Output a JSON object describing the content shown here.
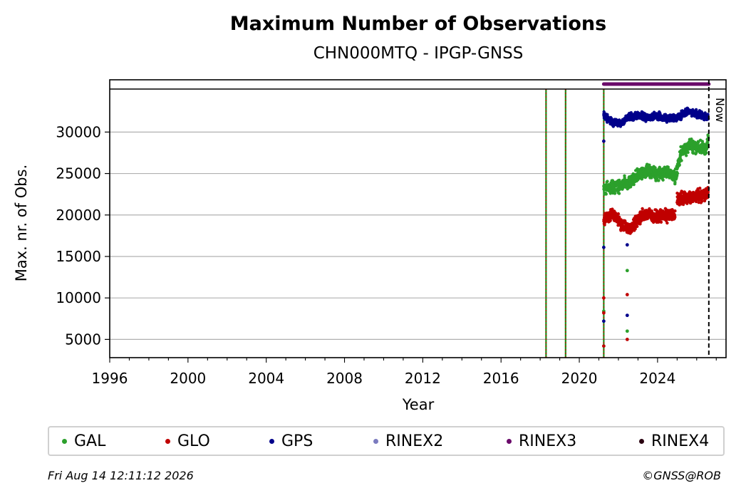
{
  "chart_data": {
    "type": "scatter",
    "title": "Maximum Number of Observations",
    "subtitle": "CHN000MTQ - IPGP-GNSS",
    "xlabel": "Year",
    "ylabel": "Max. nr. of Obs.",
    "xlim": [
      1996,
      2027.5
    ],
    "ylim": [
      2800,
      36300
    ],
    "x_ticks": [
      1996,
      2000,
      2004,
      2008,
      2012,
      2016,
      2020,
      2024
    ],
    "y_ticks": [
      5000,
      10000,
      15000,
      20000,
      25000,
      30000
    ],
    "grid": "horizontal",
    "now_label": "Now",
    "now_x": 2026.62,
    "event_lines_x": [
      2018.3,
      2019.3,
      2021.25
    ],
    "series": [
      {
        "name": "GAL",
        "color": "#2ca02c",
        "segments": [
          {
            "x": [
              2021.25,
              2022.0,
              2022.5,
              2023.0,
              2023.5,
              2024.0,
              2024.5,
              2024.9,
              2025.2,
              2025.6,
              2026.0,
              2026.5,
              2026.6
            ],
            "y": [
              23200,
              23500,
              23800,
              24800,
              25300,
              25000,
              25200,
              24500,
              27500,
              28300,
              28200,
              28000,
              29500
            ]
          }
        ],
        "outliers": [
          {
            "x": 2021.25,
            "y": 8400
          },
          {
            "x": 2022.45,
            "y": 6000
          },
          {
            "x": 2022.45,
            "y": 13300
          }
        ]
      },
      {
        "name": "GLO",
        "color": "#c00000",
        "segments": [
          {
            "x": [
              2021.25,
              2021.7,
              2022.2,
              2022.6,
              2023.0,
              2023.5,
              2024.0,
              2024.5,
              2024.9
            ],
            "y": [
              19500,
              20000,
              18800,
              18200,
              19600,
              20100,
              19800,
              19900,
              20000
            ]
          },
          {
            "x": [
              2025.0,
              2025.5,
              2026.0,
              2026.6
            ],
            "y": [
              21900,
              22100,
              22200,
              22600
            ]
          }
        ],
        "outliers": [
          {
            "x": 2021.25,
            "y": 4200
          },
          {
            "x": 2021.25,
            "y": 8200
          },
          {
            "x": 2021.25,
            "y": 10000
          },
          {
            "x": 2022.45,
            "y": 5000
          },
          {
            "x": 2022.45,
            "y": 10400
          }
        ]
      },
      {
        "name": "GPS",
        "color": "#00008b",
        "segments": [
          {
            "x": [
              2021.25,
              2021.7,
              2022.1,
              2022.5,
              2023.0,
              2023.5,
              2024.0,
              2024.5,
              2025.0,
              2025.5,
              2026.0,
              2026.6
            ],
            "y": [
              32000,
              31200,
              31000,
              31800,
              32000,
              31800,
              31900,
              31700,
              31700,
              32500,
              32200,
              31800
            ]
          }
        ],
        "outliers": [
          {
            "x": 2021.25,
            "y": 28900
          },
          {
            "x": 2021.25,
            "y": 16100
          },
          {
            "x": 2021.25,
            "y": 7200
          },
          {
            "x": 2022.45,
            "y": 16400
          },
          {
            "x": 2022.45,
            "y": 7900
          }
        ]
      },
      {
        "name": "RINEX2",
        "color": "#7b7bbf",
        "segments": [],
        "outliers": []
      },
      {
        "name": "RINEX3",
        "color": "#6a0a6a",
        "bar": [
          2021.25,
          2026.62
        ]
      },
      {
        "name": "RINEX4",
        "color": "#2a0010",
        "segments": [],
        "outliers": []
      }
    ]
  },
  "legend": [
    {
      "label": "GAL",
      "color": "#2ca02c"
    },
    {
      "label": "GLO",
      "color": "#c00000"
    },
    {
      "label": "GPS",
      "color": "#00008b"
    },
    {
      "label": "RINEX2",
      "color": "#7b7bbf"
    },
    {
      "label": "RINEX3",
      "color": "#6a0a6a"
    },
    {
      "label": "RINEX4",
      "color": "#2a0010"
    }
  ],
  "footer": {
    "timestamp": "Fri Aug 14 12:11:12 2026",
    "credit": "©GNSS@ROB"
  }
}
